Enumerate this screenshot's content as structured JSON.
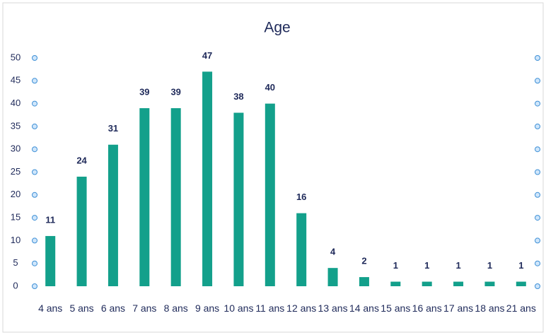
{
  "chart_data": {
    "type": "bar",
    "title": "Age",
    "categories": [
      "4 ans",
      "5 ans",
      "6 ans",
      "7 ans",
      "8 ans",
      "9 ans",
      "10 ans",
      "11 ans",
      "12 ans",
      "13 ans",
      "14 ans",
      "15 ans",
      "16 ans",
      "17 ans",
      "18 ans",
      "21 ans"
    ],
    "values": [
      11,
      24,
      31,
      39,
      39,
      47,
      38,
      40,
      16,
      4,
      2,
      1,
      1,
      1,
      1,
      1
    ],
    "color": "#13a08b",
    "ylim": [
      0,
      50
    ],
    "yticks": [
      0,
      5,
      10,
      15,
      20,
      25,
      30,
      35,
      40,
      45,
      50
    ],
    "grid": false
  }
}
